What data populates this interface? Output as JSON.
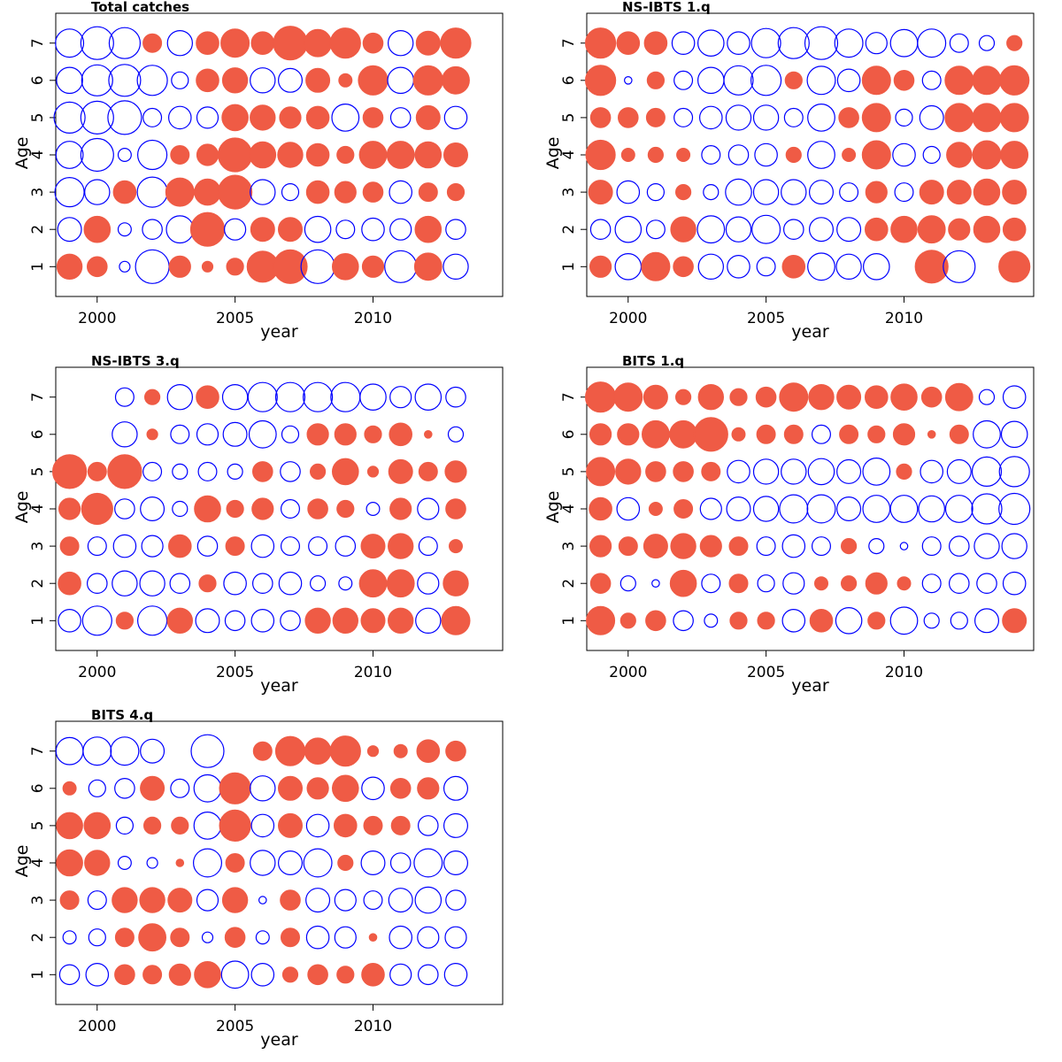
{
  "colors": {
    "positive": "#EF5B45",
    "negative": "#0000FF",
    "frame": "#000000"
  },
  "chart_data": [
    {
      "type": "scatter",
      "title": "Total catches",
      "xlabel": "year",
      "ylabel": "Age",
      "xlim": [
        1998.5,
        2014.7
      ],
      "ylim": [
        0.2,
        7.8
      ],
      "xticks": [
        2000,
        2005,
        2010
      ],
      "yticks": [
        1,
        2,
        3,
        4,
        5,
        6,
        7
      ],
      "years": [
        1999,
        2000,
        2001,
        2002,
        2003,
        2004,
        2005,
        2006,
        2007,
        2008,
        2009,
        2010,
        2011,
        2012,
        2013
      ],
      "ages": [
        1,
        2,
        3,
        4,
        5,
        6,
        7
      ],
      "residuals": [
        [
          0.55,
          0.35,
          -0.1,
          -1.0,
          0.4,
          0.1,
          0.25,
          0.85,
          1.0,
          -1.0,
          0.6,
          0.4,
          -0.9,
          0.65,
          -0.55
        ],
        [
          -0.5,
          0.6,
          -0.15,
          -0.35,
          -0.65,
          1.0,
          -0.4,
          0.5,
          0.5,
          -0.6,
          -0.3,
          -0.45,
          -0.4,
          0.6,
          -0.35
        ],
        [
          -0.75,
          -0.55,
          0.45,
          -0.8,
          0.7,
          0.6,
          1.0,
          -0.55,
          -0.25,
          0.45,
          0.4,
          0.35,
          -0.45,
          0.3,
          0.25
        ],
        [
          -0.65,
          -0.95,
          -0.15,
          -0.75,
          0.3,
          0.4,
          1.0,
          0.6,
          0.55,
          0.45,
          0.25,
          0.65,
          0.65,
          0.6,
          0.5
        ],
        [
          -0.85,
          -0.95,
          -1.0,
          -0.3,
          -0.45,
          -0.4,
          0.6,
          0.55,
          0.4,
          0.45,
          -0.65,
          0.35,
          -0.35,
          0.5,
          -0.45
        ],
        [
          -0.6,
          -0.85,
          -0.9,
          -0.8,
          -0.25,
          0.45,
          0.55,
          -0.55,
          -0.5,
          0.5,
          0.15,
          0.75,
          -0.6,
          0.75,
          0.65
        ],
        [
          -0.7,
          -0.95,
          -0.85,
          0.3,
          -0.55,
          0.45,
          0.7,
          0.45,
          1.0,
          0.65,
          0.8,
          0.35,
          -0.55,
          0.5,
          0.8
        ]
      ]
    },
    {
      "type": "scatter",
      "title": "NS-IBTS 1.q",
      "xlabel": "year",
      "ylabel": "Age",
      "xlim": [
        1998.5,
        2014.7
      ],
      "ylim": [
        0.2,
        7.8
      ],
      "xticks": [
        2000,
        2005,
        2010
      ],
      "yticks": [
        1,
        2,
        3,
        4,
        5,
        6,
        7
      ],
      "years": [
        1999,
        2000,
        2001,
        2002,
        2003,
        2004,
        2005,
        2006,
        2007,
        2008,
        2009,
        2010,
        2011,
        2012,
        2013,
        2014
      ],
      "ages": [
        1,
        2,
        3,
        4,
        5,
        6,
        7
      ],
      "residuals": [
        [
          0.4,
          -0.6,
          0.7,
          0.35,
          -0.55,
          -0.45,
          -0.3,
          0.45,
          -0.65,
          -0.55,
          -0.6,
          null,
          0.95,
          -0.9,
          null,
          0.85
        ],
        [
          -0.35,
          -0.6,
          -0.3,
          0.55,
          -0.65,
          -0.55,
          -0.7,
          -0.35,
          -0.5,
          -0.5,
          0.45,
          0.6,
          0.65,
          0.4,
          0.6,
          0.45
        ],
        [
          0.5,
          -0.45,
          -0.25,
          0.2,
          -0.2,
          -0.6,
          -0.55,
          -0.55,
          -0.5,
          -0.3,
          0.4,
          -0.3,
          0.5,
          0.5,
          0.6,
          0.5
        ],
        [
          0.75,
          0.15,
          0.2,
          0.15,
          -0.3,
          -0.35,
          -0.45,
          0.2,
          -0.65,
          0.15,
          0.7,
          -0.45,
          -0.25,
          0.55,
          0.7,
          0.65
        ],
        [
          0.35,
          0.35,
          0.3,
          -0.3,
          -0.45,
          -0.55,
          -0.55,
          -0.3,
          -0.65,
          0.35,
          0.7,
          -0.25,
          -0.5,
          0.7,
          0.7,
          0.7
        ],
        [
          0.8,
          -0.05,
          0.25,
          -0.3,
          -0.6,
          -0.75,
          -0.8,
          0.25,
          -0.7,
          -0.45,
          0.7,
          0.35,
          -0.3,
          0.7,
          0.7,
          0.75
        ],
        [
          0.8,
          0.45,
          0.45,
          -0.45,
          -0.6,
          -0.45,
          -0.75,
          -0.85,
          -0.95,
          -0.7,
          -0.4,
          -0.65,
          -0.7,
          -0.3,
          -0.2,
          0.2
        ]
      ]
    },
    {
      "type": "scatter",
      "title": "NS-IBTS 3.q",
      "xlabel": "year",
      "ylabel": "Age",
      "xlim": [
        1998.5,
        2014.7
      ],
      "ylim": [
        0.2,
        7.8
      ],
      "xticks": [
        2000,
        2005,
        2010
      ],
      "yticks": [
        1,
        2,
        3,
        4,
        5,
        6,
        7
      ],
      "years": [
        1999,
        2000,
        2001,
        2002,
        2003,
        2004,
        2005,
        2006,
        2007,
        2008,
        2009,
        2010,
        2011,
        2012,
        2013
      ],
      "ages": [
        1,
        2,
        3,
        4,
        5,
        6,
        7
      ],
      "residuals": [
        [
          -0.45,
          -0.75,
          0.25,
          -0.75,
          0.55,
          -0.5,
          -0.35,
          -0.45,
          -0.35,
          0.55,
          0.55,
          0.5,
          0.55,
          -0.55,
          0.7
        ],
        [
          0.45,
          -0.35,
          -0.55,
          -0.55,
          -0.35,
          0.25,
          -0.45,
          -0.35,
          -0.45,
          -0.2,
          -0.15,
          0.65,
          0.65,
          -0.4,
          0.55
        ],
        [
          0.3,
          -0.3,
          -0.45,
          -0.4,
          0.45,
          -0.35,
          0.3,
          -0.45,
          -0.3,
          -0.3,
          -0.35,
          0.5,
          0.55,
          -0.3,
          0.15
        ],
        [
          0.4,
          0.85,
          -0.35,
          -0.5,
          -0.2,
          0.6,
          0.25,
          0.4,
          -0.3,
          0.35,
          0.25,
          -0.15,
          0.4,
          -0.4,
          0.35
        ],
        [
          1.0,
          0.3,
          1.0,
          -0.3,
          -0.2,
          -0.3,
          -0.2,
          0.35,
          -0.35,
          0.2,
          0.6,
          0.1,
          0.5,
          0.3,
          0.4
        ],
        [
          null,
          null,
          -0.55,
          0.1,
          -0.3,
          -0.4,
          -0.5,
          -0.65,
          -0.25,
          0.4,
          0.4,
          0.25,
          0.45,
          0.05,
          -0.2
        ],
        [
          null,
          null,
          -0.3,
          0.2,
          -0.55,
          0.45,
          -0.55,
          -0.75,
          -0.75,
          -0.75,
          -0.75,
          -0.6,
          -0.4,
          -0.6,
          -0.35
        ]
      ]
    },
    {
      "type": "scatter",
      "title": "BITS 1.q",
      "xlabel": "year",
      "ylabel": "Age",
      "xlim": [
        1998.5,
        2014.7
      ],
      "ylim": [
        0.2,
        7.8
      ],
      "xticks": [
        2000,
        2005,
        2010
      ],
      "yticks": [
        1,
        2,
        3,
        4,
        5,
        6,
        7
      ],
      "years": [
        1999,
        2000,
        2001,
        2002,
        2003,
        2004,
        2005,
        2006,
        2007,
        2008,
        2009,
        2010,
        2011,
        2012,
        2013,
        2014
      ],
      "ages": [
        1,
        2,
        3,
        4,
        5,
        6,
        7
      ],
      "residuals": [
        [
          0.7,
          0.2,
          0.35,
          -0.35,
          -0.15,
          0.25,
          0.25,
          -0.45,
          0.45,
          -0.6,
          0.25,
          -0.65,
          -0.2,
          -0.25,
          -0.5,
          0.5
        ],
        [
          0.35,
          -0.2,
          -0.05,
          0.6,
          -0.3,
          0.3,
          -0.25,
          -0.4,
          0.15,
          0.2,
          0.4,
          0.15,
          -0.3,
          -0.35,
          -0.35,
          -0.45
        ],
        [
          0.4,
          0.3,
          0.5,
          0.55,
          0.4,
          0.3,
          -0.3,
          -0.45,
          -0.3,
          0.2,
          -0.2,
          -0.05,
          -0.3,
          -0.35,
          -0.55,
          -0.55
        ],
        [
          0.45,
          -0.45,
          0.15,
          0.3,
          -0.4,
          -0.5,
          -0.55,
          -0.7,
          -0.7,
          -0.5,
          -0.65,
          -0.65,
          -0.6,
          -0.65,
          -0.8,
          -0.85
        ],
        [
          0.7,
          0.55,
          0.35,
          0.35,
          0.3,
          -0.45,
          -0.55,
          -0.55,
          -0.6,
          -0.5,
          -0.65,
          0.2,
          -0.45,
          -0.5,
          -0.75,
          -0.8
        ],
        [
          0.4,
          0.4,
          0.65,
          0.65,
          1.0,
          0.15,
          0.3,
          0.3,
          -0.3,
          0.3,
          0.25,
          0.4,
          0.05,
          0.3,
          -0.65,
          -0.6
        ],
        [
          0.8,
          0.7,
          0.5,
          0.2,
          0.55,
          0.25,
          0.35,
          0.7,
          0.55,
          0.5,
          0.45,
          0.6,
          0.35,
          0.65,
          -0.2,
          -0.45
        ]
      ]
    },
    {
      "type": "scatter",
      "title": "BITS 4.q",
      "xlabel": "year",
      "ylabel": "Age",
      "xlim": [
        1998.5,
        2014.7
      ],
      "ylim": [
        0.2,
        7.8
      ],
      "xticks": [
        2000,
        2005,
        2010
      ],
      "yticks": [
        1,
        2,
        3,
        4,
        5,
        6,
        7
      ],
      "years": [
        1999,
        2000,
        2001,
        2002,
        2003,
        2004,
        2005,
        2006,
        2007,
        2008,
        2009,
        2010,
        2011,
        2012,
        2013
      ],
      "ages": [
        1,
        2,
        3,
        4,
        5,
        6,
        7
      ],
      "residuals": [
        [
          -0.35,
          -0.45,
          0.35,
          0.3,
          0.4,
          0.6,
          -0.65,
          -0.45,
          0.2,
          0.35,
          0.25,
          0.45,
          -0.4,
          -0.35,
          -0.45
        ],
        [
          -0.15,
          -0.25,
          0.3,
          0.65,
          0.3,
          -0.1,
          0.35,
          -0.15,
          0.3,
          -0.45,
          -0.4,
          0.05,
          -0.45,
          -0.4,
          -0.4
        ],
        [
          0.3,
          -0.3,
          0.55,
          0.55,
          0.5,
          -0.4,
          0.55,
          -0.05,
          0.35,
          -0.5,
          -0.4,
          -0.3,
          -0.5,
          -0.6,
          -0.35
        ],
        [
          0.6,
          0.55,
          -0.15,
          -0.1,
          0.05,
          -0.7,
          0.3,
          -0.55,
          -0.5,
          -0.7,
          0.2,
          -0.5,
          -0.35,
          -0.7,
          -0.5
        ],
        [
          0.6,
          0.6,
          -0.25,
          0.25,
          0.25,
          -0.65,
          0.85,
          -0.45,
          0.5,
          -0.45,
          0.45,
          0.3,
          0.3,
          -0.35,
          -0.5
        ],
        [
          0.15,
          -0.25,
          -0.35,
          0.5,
          -0.3,
          -0.65,
          0.85,
          -0.55,
          0.5,
          0.4,
          0.6,
          -0.45,
          0.35,
          0.4,
          -0.5
        ],
        [
          -0.65,
          -0.7,
          -0.7,
          -0.5,
          null,
          -0.95,
          null,
          0.3,
          0.75,
          0.6,
          0.8,
          0.1,
          0.15,
          0.45,
          0.35
        ]
      ]
    }
  ]
}
